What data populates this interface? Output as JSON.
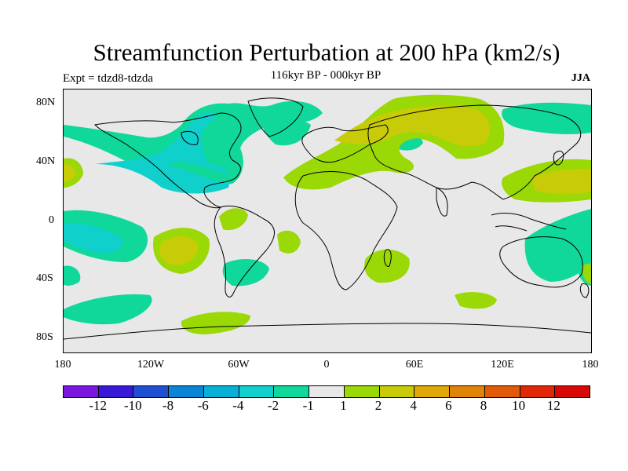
{
  "title": "Streamfunction Perturbation at 200 hPa (km2/s)",
  "left_label": "Expt = tdzd8-tdzda",
  "subtitle": "116kyr BP - 000kyr BP",
  "season": "JJA",
  "lat_ticks": [
    "80N",
    "40N",
    "0",
    "40S",
    "80S"
  ],
  "lon_ticks": [
    "180",
    "120W",
    "60W",
    "0",
    "60E",
    "120E",
    "180"
  ],
  "colorbar": {
    "labels": [
      "-12",
      "-10",
      "-8",
      "-6",
      "-4",
      "-2",
      "-1",
      "1",
      "2",
      "4",
      "6",
      "8",
      "10",
      "12"
    ],
    "colors": [
      "#7b16e0",
      "#3b17d8",
      "#1f4fd0",
      "#0a85d6",
      "#08b0d8",
      "#10d0cc",
      "#10d89a",
      "#e8e8e8",
      "#9ad806",
      "#c8cc08",
      "#dfa808",
      "#e08408",
      "#e05a08",
      "#e02808",
      "#d80808"
    ]
  },
  "fill_colors": {
    "neg2": "#10d89a",
    "neg4": "#10d0cc",
    "pos1": "#9ad806",
    "pos2": "#c8cc08"
  }
}
